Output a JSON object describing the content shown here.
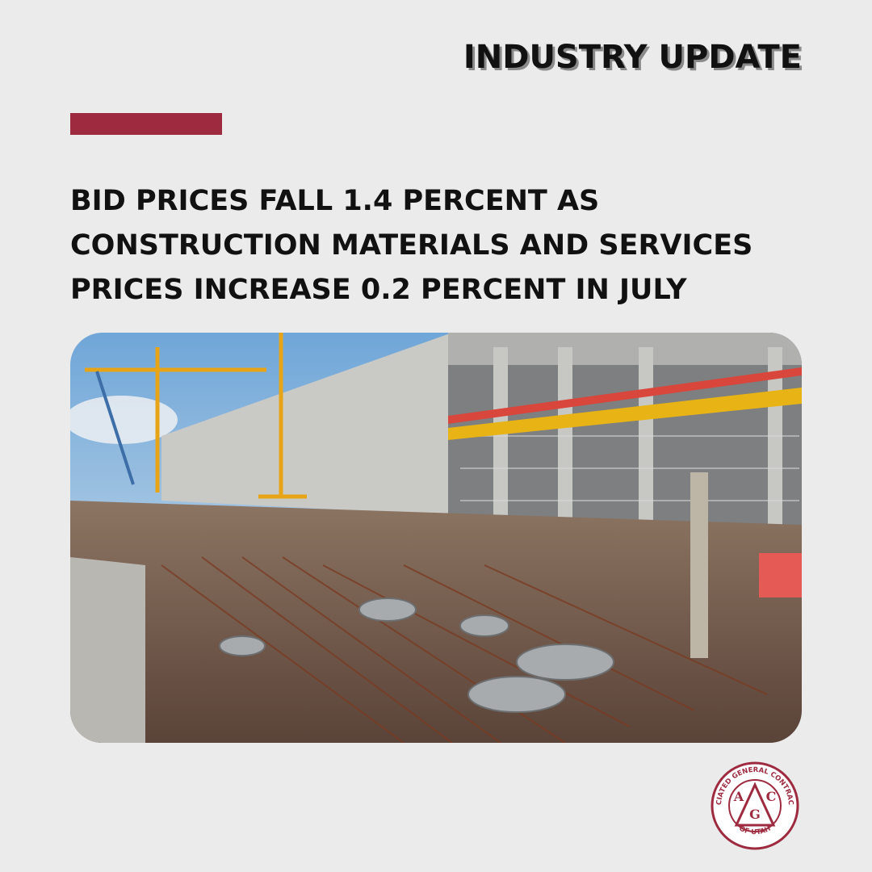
{
  "header": {
    "label": "INDUSTRY UPDATE"
  },
  "headline": {
    "lines": [
      "BID PRICES FALL 1.4 PERCENT AS",
      "CONSTRUCTION MATERIALS AND SERVICES",
      "PRICES INCREASE 0.2 PERCENT IN JULY"
    ]
  },
  "logo": {
    "ring_top": "ASSOCIATED GENERAL CONTRACTORS",
    "ring_bottom": "OF UTAH",
    "letters": [
      "A",
      "G",
      "C"
    ]
  }
}
